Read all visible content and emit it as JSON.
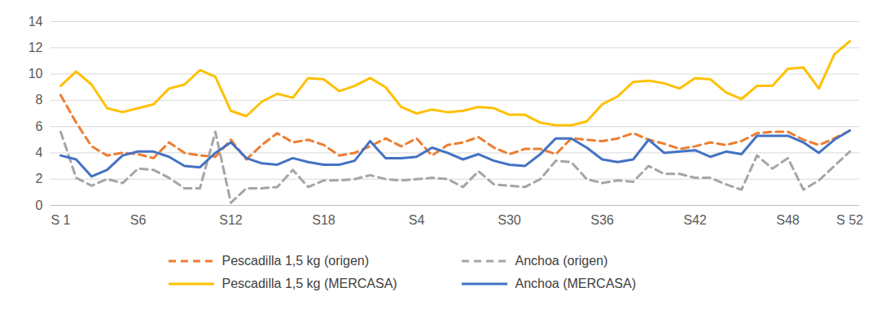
{
  "chart_data": {
    "type": "line",
    "categories": [
      "S 1",
      null,
      null,
      null,
      null,
      "S6",
      null,
      null,
      null,
      null,
      null,
      "S12",
      null,
      null,
      null,
      null,
      null,
      "S18",
      null,
      null,
      null,
      null,
      null,
      "S4",
      null,
      null,
      null,
      null,
      null,
      "S30",
      null,
      null,
      null,
      null,
      null,
      "S36",
      null,
      null,
      null,
      null,
      null,
      "S42",
      null,
      null,
      null,
      null,
      null,
      "S48",
      null,
      null,
      null,
      "S 52"
    ],
    "ylim": [
      0,
      14
    ],
    "yticks": [
      0,
      2,
      4,
      6,
      8,
      10,
      12,
      14
    ],
    "grid": true,
    "legend": "bottom",
    "series": [
      {
        "name": "Pescadilla 1,5 kg (origen)",
        "color": "#ed7d31",
        "line_style": "dashed",
        "values": [
          8.4,
          6.3,
          4.5,
          3.8,
          4.0,
          3.9,
          3.6,
          4.8,
          4.0,
          3.8,
          3.7,
          5.0,
          3.5,
          4.6,
          5.5,
          4.8,
          5.0,
          4.6,
          3.8,
          4.0,
          4.5,
          5.1,
          4.5,
          5.1,
          3.8,
          4.6,
          4.8,
          5.2,
          4.4,
          3.9,
          4.3,
          4.3,
          3.9,
          5.1,
          5.0,
          4.9,
          5.1,
          5.5,
          5.0,
          4.7,
          4.3,
          4.5,
          4.8,
          4.6,
          4.9,
          5.5,
          5.6,
          5.6,
          5.0,
          4.6,
          5.1,
          5.7
        ]
      },
      {
        "name": "Anchoa (origen)",
        "color": "#a5a5a5",
        "line_style": "dashed",
        "values": [
          5.6,
          2.1,
          1.5,
          2.0,
          1.7,
          2.8,
          2.7,
          2.1,
          1.3,
          1.3,
          5.6,
          0.2,
          1.3,
          1.3,
          1.4,
          2.7,
          1.4,
          1.9,
          1.9,
          2.0,
          2.3,
          2.0,
          1.9,
          2.0,
          2.1,
          2.0,
          1.4,
          2.6,
          1.6,
          1.5,
          1.4,
          2.0,
          3.4,
          3.3,
          2.0,
          1.7,
          1.9,
          1.8,
          3.0,
          2.4,
          2.4,
          2.1,
          2.1,
          1.6,
          1.2,
          3.8,
          2.8,
          3.6,
          1.2,
          1.9,
          3.0,
          4.1
        ]
      },
      {
        "name": "Pescadilla 1,5 kg (MERCASA)",
        "color": "#ffc000",
        "line_style": "solid",
        "values": [
          9.1,
          10.2,
          9.2,
          7.4,
          7.1,
          7.4,
          7.7,
          8.9,
          9.2,
          10.3,
          9.8,
          7.2,
          6.8,
          7.9,
          8.5,
          8.2,
          9.7,
          9.6,
          8.7,
          9.1,
          9.7,
          9.0,
          7.5,
          7.0,
          7.3,
          7.1,
          7.2,
          7.5,
          7.4,
          6.9,
          6.9,
          6.3,
          6.1,
          6.1,
          6.4,
          7.7,
          8.3,
          9.4,
          9.5,
          9.3,
          8.9,
          9.7,
          9.6,
          8.6,
          8.1,
          9.1,
          9.1,
          10.4,
          10.5,
          8.9,
          11.5,
          12.5
        ]
      },
      {
        "name": "Anchoa (MERCASA)",
        "color": "#4472c4",
        "line_style": "solid",
        "values": [
          3.8,
          3.5,
          2.2,
          2.7,
          3.8,
          4.1,
          4.1,
          3.7,
          3.0,
          2.9,
          4.0,
          4.8,
          3.6,
          3.2,
          3.1,
          3.6,
          3.3,
          3.1,
          3.1,
          3.4,
          4.9,
          3.6,
          3.6,
          3.7,
          4.4,
          4.0,
          3.5,
          3.9,
          3.4,
          3.1,
          3.0,
          3.9,
          5.1,
          5.1,
          4.4,
          3.5,
          3.3,
          3.5,
          5.0,
          4.0,
          4.1,
          4.2,
          3.7,
          4.1,
          3.9,
          5.3,
          5.3,
          5.3,
          4.8,
          4.0,
          5.0,
          5.7
        ]
      }
    ]
  }
}
